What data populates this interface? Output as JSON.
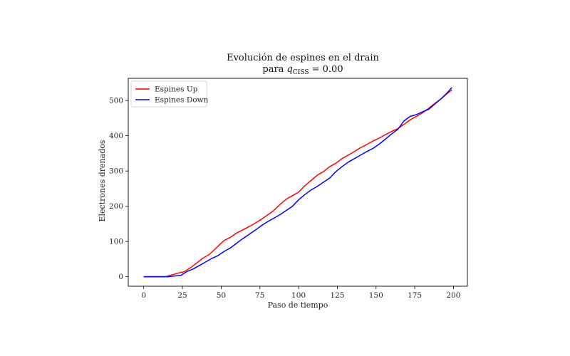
{
  "chart_data": {
    "type": "line",
    "title": "Evolución de espines en el drain",
    "subtitle": {
      "prefix": "para ",
      "var": "q",
      "sub": "CISS",
      "suffix": " = 0.00"
    },
    "xlabel": "Paso de tiempo",
    "ylabel": "Electrones drenados",
    "xlim": [
      -10,
      209
    ],
    "ylim": [
      -27,
      563
    ],
    "xticks": [
      0,
      25,
      50,
      75,
      100,
      125,
      150,
      175,
      200
    ],
    "yticks": [
      0,
      100,
      200,
      300,
      400,
      500
    ],
    "legend_position": "top-left",
    "grid": false,
    "series": [
      {
        "name": "Espines Up",
        "color": "#ff0000",
        "points": [
          [
            0,
            0
          ],
          [
            14,
            0
          ],
          [
            18,
            5
          ],
          [
            22,
            10
          ],
          [
            26,
            14
          ],
          [
            30,
            25
          ],
          [
            34,
            38
          ],
          [
            38,
            52
          ],
          [
            42,
            62
          ],
          [
            46,
            78
          ],
          [
            50,
            95
          ],
          [
            52,
            103
          ],
          [
            56,
            112
          ],
          [
            60,
            124
          ],
          [
            64,
            133
          ],
          [
            68,
            142
          ],
          [
            72,
            152
          ],
          [
            76,
            163
          ],
          [
            80,
            175
          ],
          [
            84,
            188
          ],
          [
            88,
            205
          ],
          [
            92,
            220
          ],
          [
            96,
            230
          ],
          [
            100,
            240
          ],
          [
            104,
            258
          ],
          [
            108,
            273
          ],
          [
            112,
            288
          ],
          [
            116,
            298
          ],
          [
            120,
            312
          ],
          [
            124,
            322
          ],
          [
            128,
            335
          ],
          [
            132,
            345
          ],
          [
            136,
            355
          ],
          [
            140,
            366
          ],
          [
            144,
            375
          ],
          [
            148,
            385
          ],
          [
            152,
            393
          ],
          [
            156,
            403
          ],
          [
            160,
            412
          ],
          [
            164,
            420
          ],
          [
            168,
            432
          ],
          [
            172,
            445
          ],
          [
            176,
            455
          ],
          [
            180,
            465
          ],
          [
            184,
            478
          ],
          [
            188,
            492
          ],
          [
            192,
            505
          ],
          [
            196,
            520
          ],
          [
            199,
            530
          ]
        ]
      },
      {
        "name": "Espines Down",
        "color": "#0000ff",
        "points": [
          [
            0,
            0
          ],
          [
            16,
            0
          ],
          [
            20,
            2
          ],
          [
            24,
            4
          ],
          [
            28,
            15
          ],
          [
            32,
            22
          ],
          [
            36,
            32
          ],
          [
            40,
            42
          ],
          [
            44,
            52
          ],
          [
            48,
            60
          ],
          [
            52,
            72
          ],
          [
            56,
            82
          ],
          [
            60,
            95
          ],
          [
            64,
            108
          ],
          [
            68,
            120
          ],
          [
            72,
            132
          ],
          [
            76,
            145
          ],
          [
            80,
            156
          ],
          [
            84,
            166
          ],
          [
            88,
            176
          ],
          [
            92,
            188
          ],
          [
            96,
            200
          ],
          [
            100,
            218
          ],
          [
            104,
            233
          ],
          [
            108,
            246
          ],
          [
            112,
            256
          ],
          [
            116,
            268
          ],
          [
            120,
            280
          ],
          [
            124,
            298
          ],
          [
            128,
            312
          ],
          [
            132,
            325
          ],
          [
            136,
            335
          ],
          [
            140,
            345
          ],
          [
            144,
            355
          ],
          [
            148,
            364
          ],
          [
            152,
            376
          ],
          [
            156,
            390
          ],
          [
            160,
            405
          ],
          [
            164,
            418
          ],
          [
            168,
            442
          ],
          [
            172,
            455
          ],
          [
            176,
            460
          ],
          [
            180,
            468
          ],
          [
            184,
            475
          ],
          [
            188,
            490
          ],
          [
            192,
            505
          ],
          [
            196,
            522
          ],
          [
            199,
            537
          ]
        ]
      }
    ]
  }
}
